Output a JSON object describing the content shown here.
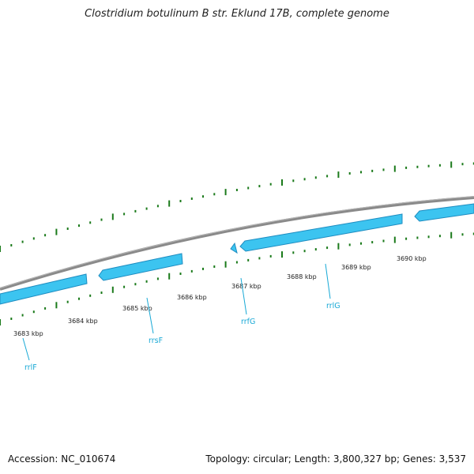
{
  "title": "Clostridium botulinum B str. Eklund 17B, complete genome",
  "footer": {
    "accession": "Accession: NC_010674",
    "summary": "Topology: circular; Length: 3,800,327 bp; Genes: 3,537"
  },
  "colors": {
    "backbone": "#8a8a8a",
    "feature": "#3cc4f0",
    "feature_edge": "#1e8cc0",
    "tick": "#1a7a1a",
    "label": "#19a9d6"
  },
  "scale_labels": [
    "3683 kbp",
    "3684 kbp",
    "3685 kbp",
    "3686 kbp",
    "3687 kbp",
    "3688 kbp",
    "3689 kbp",
    "3690 kbp"
  ],
  "genes": [
    "rrlF",
    "rrsF",
    "rrfG",
    "rrlG"
  ]
}
